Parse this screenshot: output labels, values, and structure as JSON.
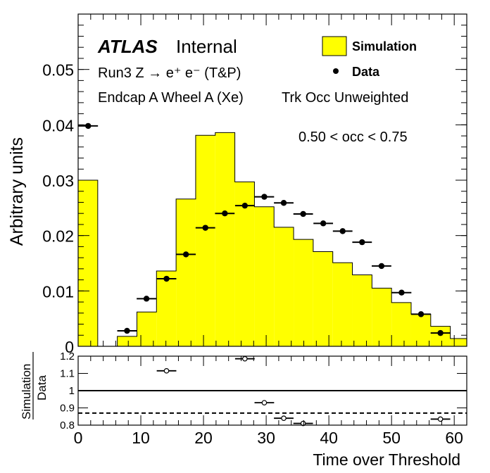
{
  "chart_data": [
    {
      "type": "bar",
      "panel": "main",
      "xlim": [
        0,
        62
      ],
      "ylim": [
        0,
        0.06
      ],
      "ylabel": "Arbitrary units",
      "xlabel": "",
      "yticks": [
        0,
        0.01,
        0.02,
        0.03,
        0.04,
        0.05
      ],
      "ytick_labels": [
        "0",
        "0.01",
        "0.02",
        "0.03",
        "0.04",
        "0.05"
      ],
      "atlas_label": "ATLAS",
      "atlas_sublabel": "Internal",
      "annotations": [
        "Run3 Z → e⁺ e⁻ (T&P)",
        "Endcap A Wheel A (Xe)",
        "Trk Occ Unweighted",
        "0.50 < occ < 0.75"
      ],
      "legend": {
        "placement": "top-right",
        "entries": [
          {
            "label": "Simulation",
            "style": "filled-yellow"
          },
          {
            "label": "Data",
            "style": "black-marker"
          }
        ]
      },
      "bin_edges": [
        0,
        3.125,
        6.25,
        9.375,
        12.5,
        15.625,
        18.75,
        21.875,
        25,
        28.125,
        31.25,
        34.375,
        37.5,
        40.625,
        43.75,
        46.875,
        50,
        53.125,
        56.25,
        59.375,
        62.5
      ],
      "series": [
        {
          "name": "Simulation",
          "color": "#ffff00",
          "values": [
            0.03,
            0.0,
            0.0018,
            0.0062,
            0.0136,
            0.0266,
            0.0381,
            0.0386,
            0.0297,
            0.0252,
            0.0215,
            0.0193,
            0.0171,
            0.0151,
            0.0129,
            0.0105,
            0.0079,
            0.0058,
            0.0036,
            0.0014
          ]
        },
        {
          "name": "Data",
          "color": "#000000",
          "x": [
            1.6,
            7.8,
            10.9,
            14.1,
            17.2,
            20.3,
            23.4,
            26.6,
            29.7,
            32.8,
            35.9,
            39.1,
            42.2,
            45.3,
            48.4,
            51.6,
            54.7,
            57.8
          ],
          "values": [
            0.0398,
            0.0028,
            0.0086,
            0.0122,
            0.0166,
            0.0214,
            0.024,
            0.0254,
            0.027,
            0.0259,
            0.0239,
            0.0222,
            0.0208,
            0.0188,
            0.0145,
            0.0097,
            0.0058,
            0.0024
          ]
        }
      ]
    },
    {
      "type": "scatter",
      "panel": "ratio",
      "xlim": [
        0,
        62
      ],
      "ylim": [
        0.8,
        1.2
      ],
      "ylabel_numerator": "Simulation",
      "ylabel_denominator": "Data",
      "xlabel": "Time over Threshold",
      "yticks": [
        0.8,
        0.9,
        1.0,
        1.1,
        1.2
      ],
      "ytick_labels": [
        "0.8",
        "0.9",
        "1",
        "1.1",
        "1.2"
      ],
      "xticks": [
        0,
        10,
        20,
        30,
        40,
        50,
        60
      ],
      "xtick_labels": [
        "0",
        "10",
        "20",
        "30",
        "40",
        "50",
        "60"
      ],
      "reference_lines": [
        {
          "y": 1.0,
          "style": "solid"
        },
        {
          "y": 0.87,
          "style": "dashed"
        }
      ],
      "points": {
        "x": [
          14.1,
          26.6,
          29.7,
          32.8,
          35.9,
          57.8
        ],
        "values": [
          1.115,
          1.185,
          0.93,
          0.84,
          0.81,
          0.835
        ]
      }
    }
  ]
}
